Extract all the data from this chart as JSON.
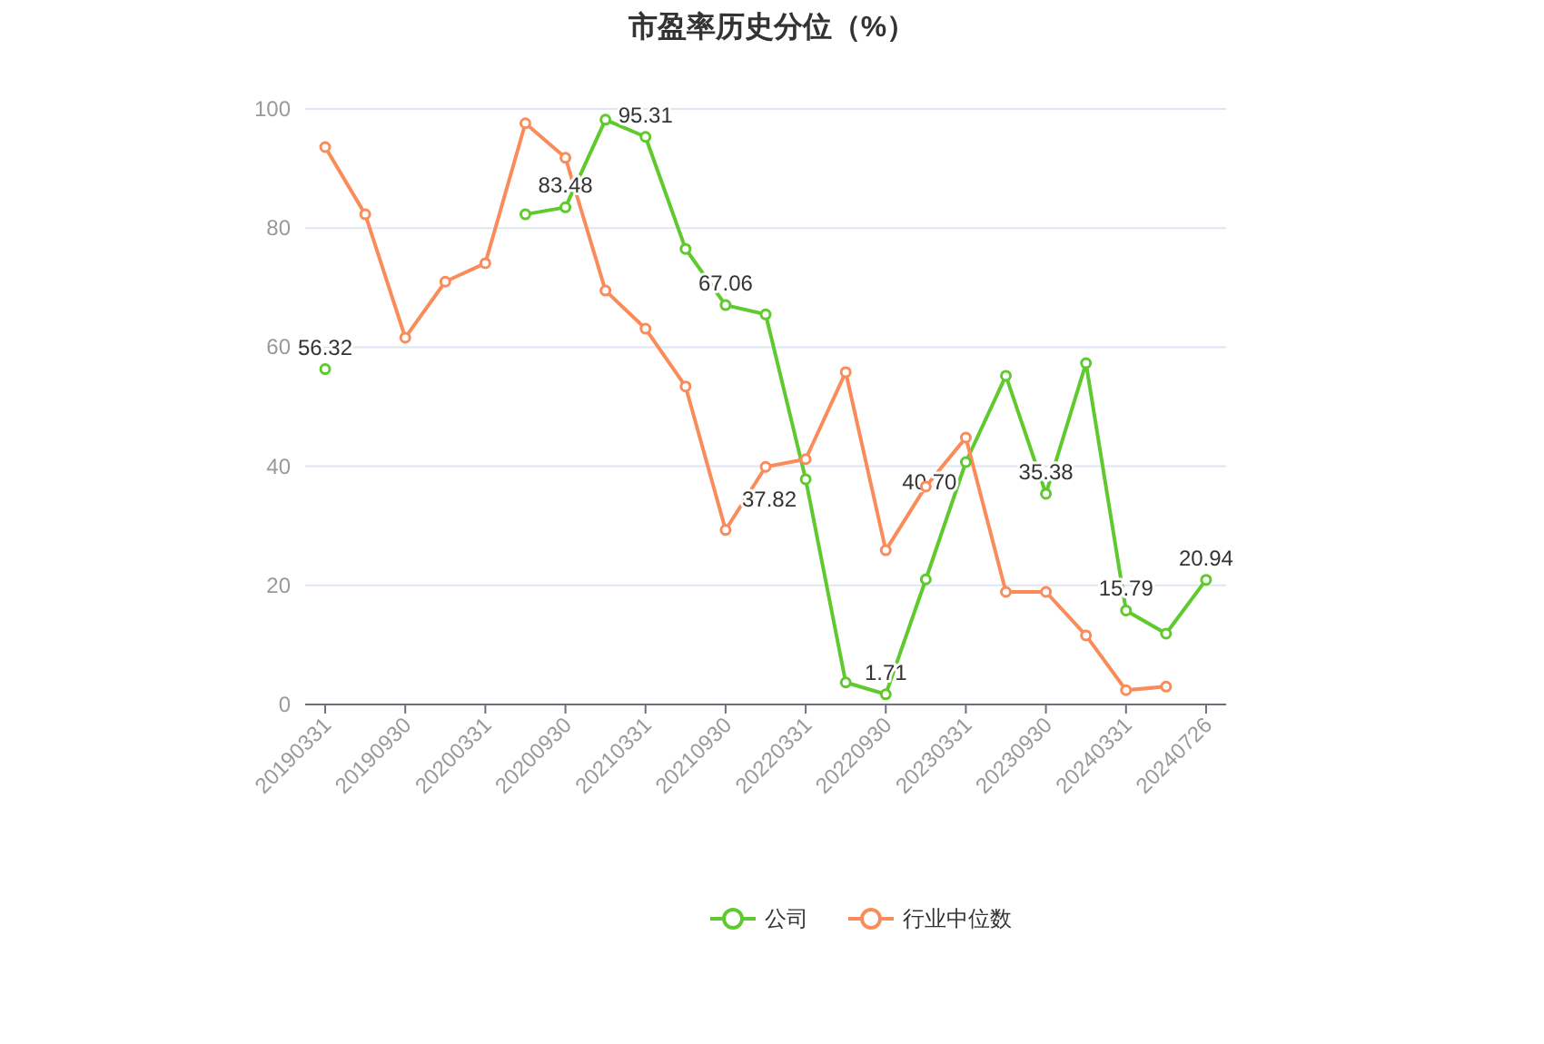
{
  "chart_data": {
    "type": "line",
    "title": "市盈率历史分位（%）",
    "categories": [
      "20190331",
      null,
      "20190930",
      null,
      "20200331",
      null,
      "20200930",
      null,
      "20210331",
      null,
      "20210930",
      null,
      "20220331",
      null,
      "20220930",
      null,
      "20230331",
      null,
      "20230930",
      null,
      "20240331",
      null,
      "20240726"
    ],
    "series": [
      {
        "name": "公司",
        "color": "#5fc92e",
        "values": [
          56.32,
          null,
          null,
          null,
          null,
          82.3,
          83.48,
          98.2,
          95.31,
          76.5,
          67.06,
          65.5,
          37.82,
          3.7,
          1.71,
          21.0,
          40.7,
          55.2,
          35.38,
          57.3,
          15.79,
          11.9,
          20.94
        ],
        "value_labels": [
          "56.32",
          null,
          null,
          null,
          null,
          null,
          "83.48",
          null,
          "95.31",
          null,
          "67.06",
          null,
          "37.82",
          null,
          "1.71",
          null,
          "40.70",
          null,
          "35.38",
          null,
          "15.79",
          null,
          "20.94"
        ]
      },
      {
        "name": "行业中位数",
        "color": "#f98c5a",
        "values": [
          93.6,
          82.3,
          61.6,
          71.0,
          74.1,
          97.6,
          91.8,
          69.5,
          63.1,
          53.4,
          29.3,
          39.9,
          41.2,
          55.8,
          25.9,
          36.6,
          44.8,
          18.9,
          18.9,
          11.6,
          2.4,
          3.0,
          null
        ]
      }
    ],
    "ylim": [
      0,
      100
    ],
    "yticks": [
      0,
      20,
      40,
      60,
      80,
      100
    ],
    "grid": "y",
    "legend": "bottom",
    "marker": "circle",
    "line_style": "solid"
  }
}
